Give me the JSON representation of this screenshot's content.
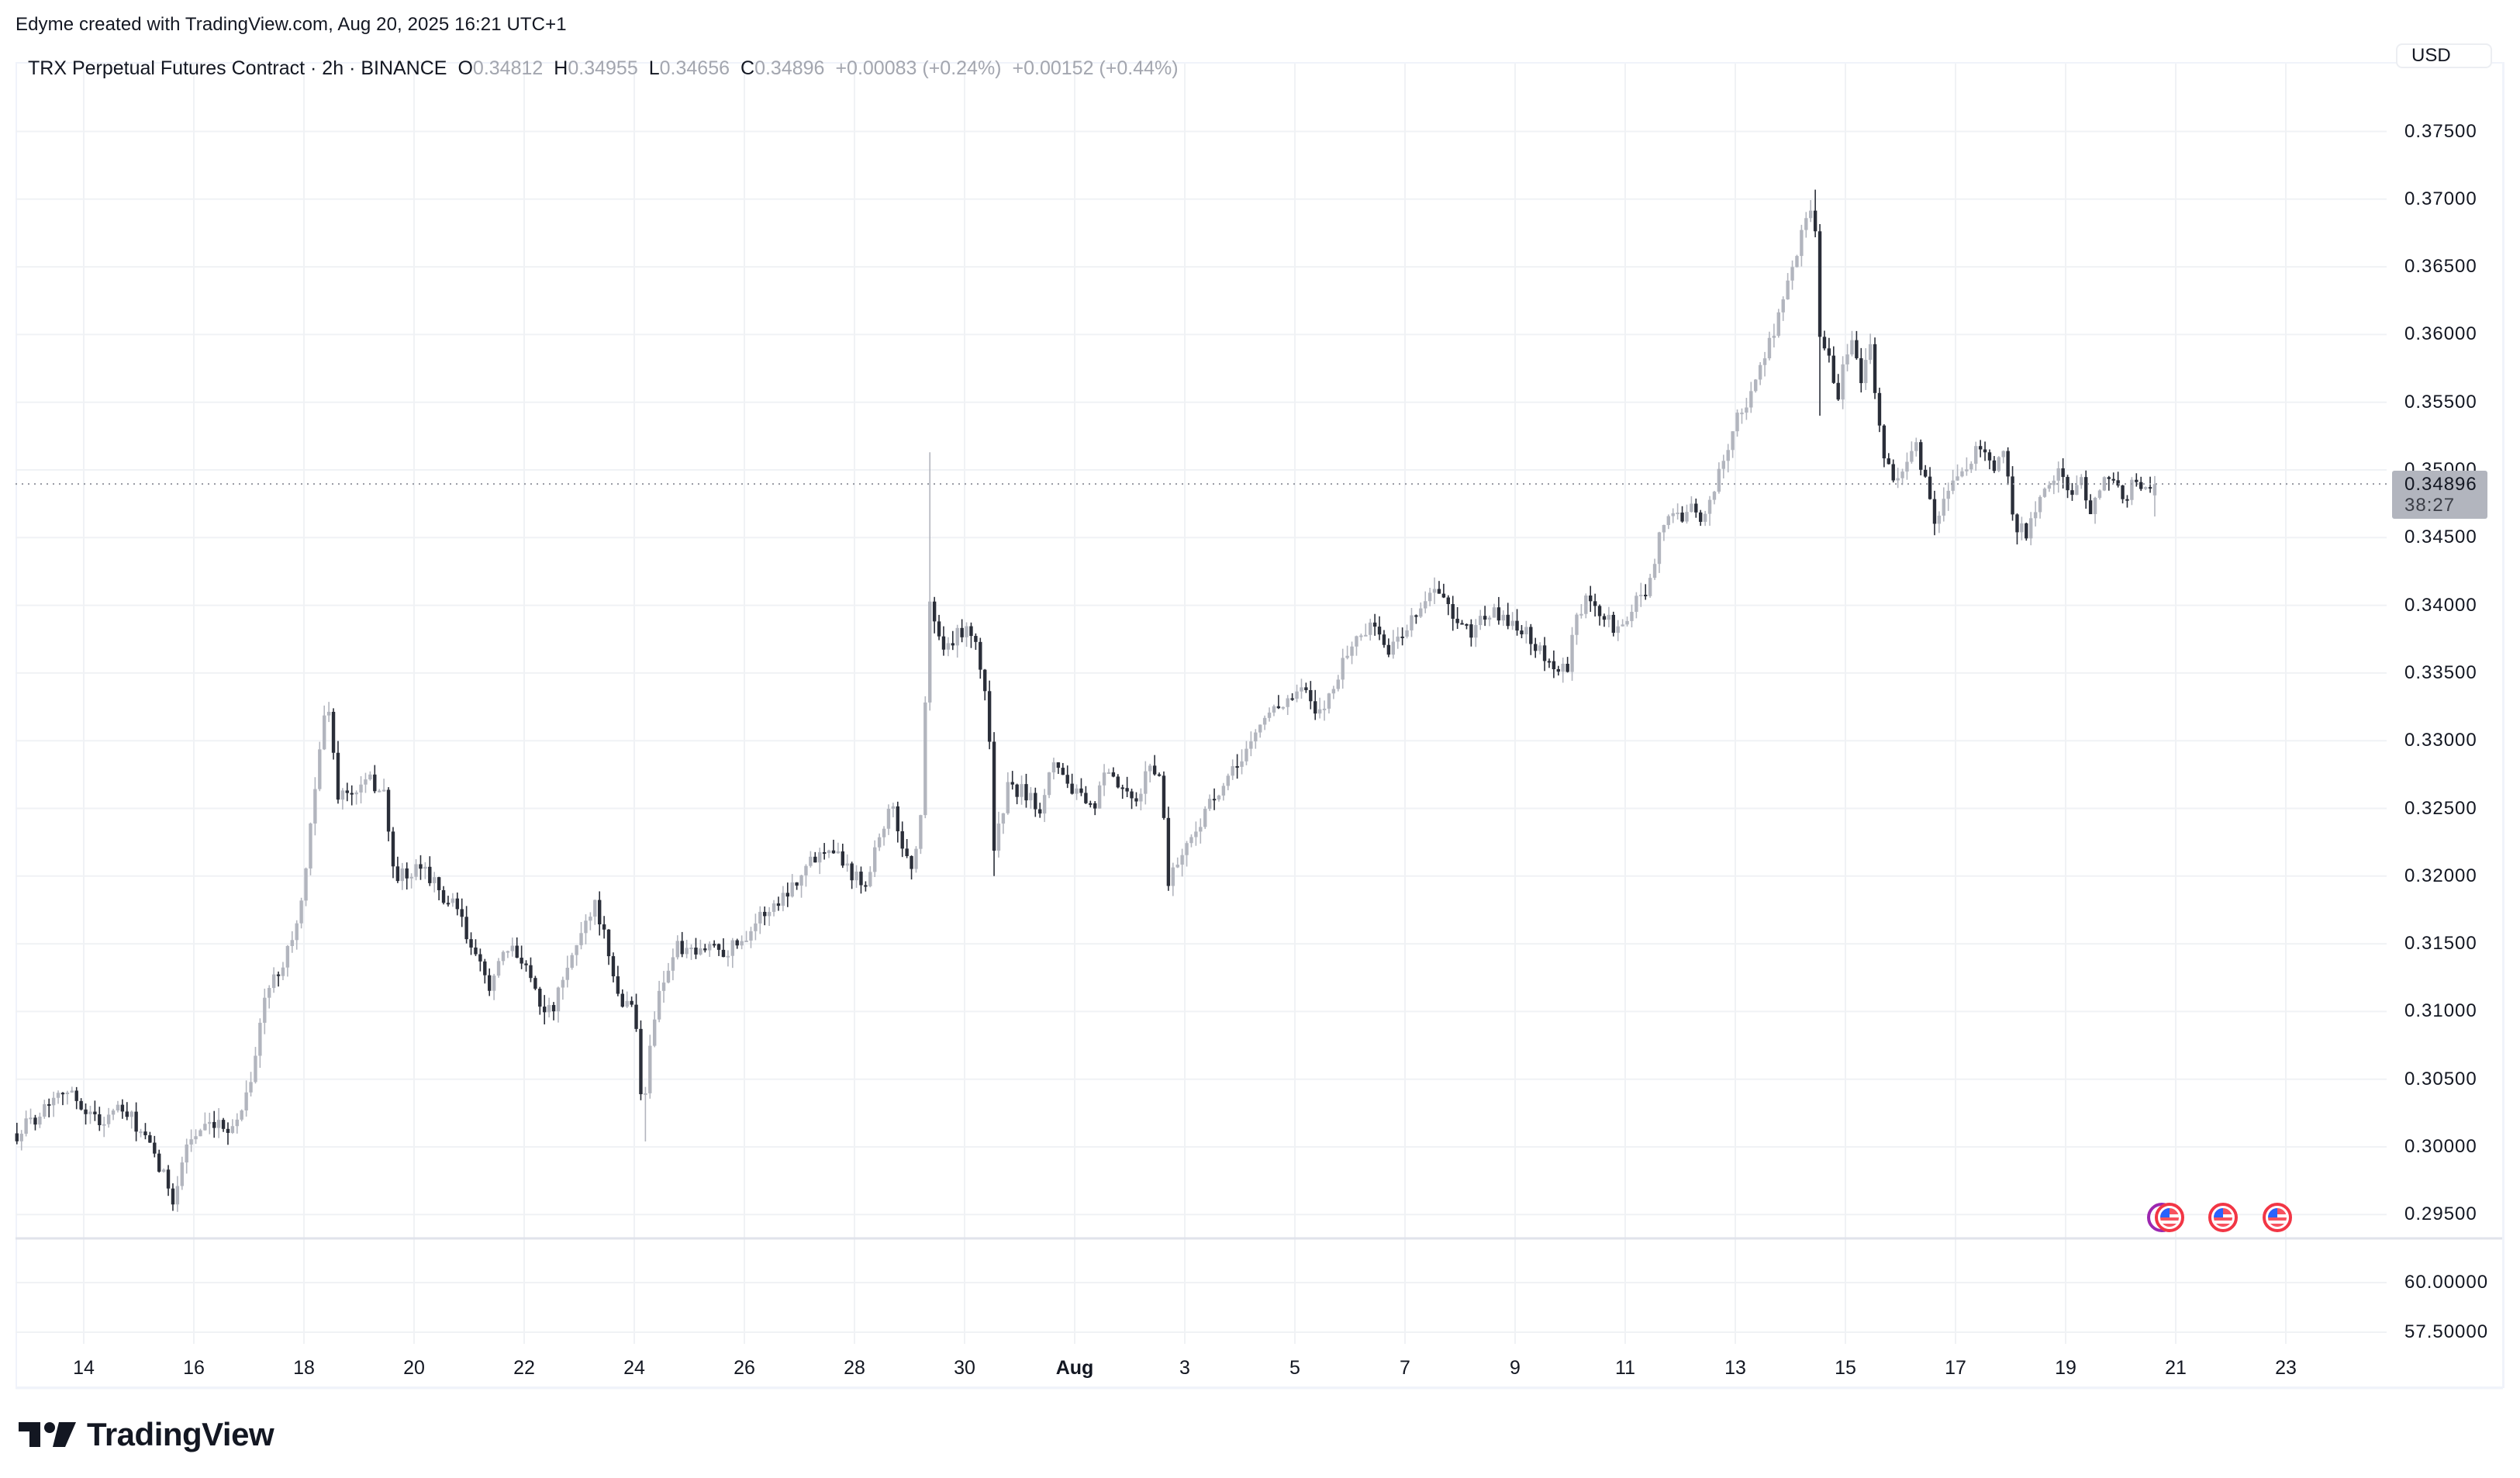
{
  "attribution": "Edyme created with TradingView.com, Aug 20, 2025 16:21 UTC+1",
  "legend": {
    "symbol": "TRX Perpetual Futures Contract · 2h · BINANCE",
    "o_label": "O",
    "o_value": "0.34812",
    "h_label": "H",
    "h_value": "0.34955",
    "l_label": "L",
    "l_value": "0.34656",
    "c_label": "C",
    "c_value": "0.34896",
    "change_1": "+0.00083 (+0.24%)",
    "change_2": "+0.00152 (+0.44%)"
  },
  "currency_button": "USD",
  "price_axis": {
    "labels": [
      "0.37500",
      "0.37000",
      "0.36500",
      "0.36000",
      "0.35500",
      "0.35000",
      "0.34500",
      "0.34000",
      "0.33500",
      "0.33000",
      "0.32500",
      "0.32000",
      "0.31500",
      "0.31000",
      "0.30500",
      "0.30000",
      "0.29500"
    ],
    "last_price": "0.34896",
    "countdown": "38:27"
  },
  "indicator_axis": {
    "labels": [
      "60.00000",
      "57.50000"
    ]
  },
  "time_axis": {
    "labels": [
      "14",
      "16",
      "18",
      "20",
      "22",
      "24",
      "26",
      "28",
      "30",
      "Aug",
      "3",
      "5",
      "7",
      "9",
      "11",
      "13",
      "15",
      "17",
      "19",
      "21",
      "23"
    ]
  },
  "event_markers": [
    {
      "type": "US economic event",
      "icon": "us-flag-icon"
    },
    {
      "type": "US economic event",
      "icon": "us-flag-icon"
    },
    {
      "type": "US economic event",
      "icon": "us-flag-icon"
    }
  ],
  "brand": {
    "logo_text": "TradingView"
  },
  "colors": {
    "up_candle": "#b2b5be",
    "down_candle": "#2a2e39",
    "grid": "#f0f2f5",
    "last_price_line": "#9598a1",
    "event_ring": "#f23645",
    "event_ring_alt": "#9c27b0"
  },
  "chart_data": {
    "type": "candlestick",
    "title": "TRX Perpetual Futures Contract · 2h · BINANCE",
    "interval": "2h",
    "xlabel": "",
    "ylabel": "USD",
    "ylim": [
      0.2915,
      0.3785
    ],
    "x_range": [
      "Jul 12 2025 ~18:00",
      "Aug 20 2025 16:00"
    ],
    "grid": true,
    "last": {
      "open": 0.34812,
      "high": 0.34955,
      "low": 0.34656,
      "close": 0.34896
    },
    "close_path_note": "approximate closes, day 0 = Jul 13 00:00",
    "close_path": [
      [
        -0.2,
        0.301
      ],
      [
        0.2,
        0.3025
      ],
      [
        0.6,
        0.3045
      ],
      [
        1.0,
        0.303
      ],
      [
        1.3,
        0.3018
      ],
      [
        1.6,
        0.3028
      ],
      [
        1.9,
        0.302
      ],
      [
        2.2,
        0.3
      ],
      [
        2.5,
        0.2975
      ],
      [
        2.65,
        0.2962
      ],
      [
        2.9,
        0.3005
      ],
      [
        3.2,
        0.3012
      ],
      [
        3.6,
        0.3015
      ],
      [
        3.8,
        0.3018
      ],
      [
        4.1,
        0.306
      ],
      [
        4.3,
        0.311
      ],
      [
        4.6,
        0.3135
      ],
      [
        4.9,
        0.3165
      ],
      [
        5.05,
        0.32
      ],
      [
        5.2,
        0.3265
      ],
      [
        5.35,
        0.331
      ],
      [
        5.5,
        0.333
      ],
      [
        5.58,
        0.3262
      ],
      [
        5.9,
        0.326
      ],
      [
        6.2,
        0.327
      ],
      [
        6.5,
        0.3262
      ],
      [
        6.6,
        0.3204
      ],
      [
        6.9,
        0.3198
      ],
      [
        7.2,
        0.3208
      ],
      [
        7.5,
        0.3185
      ],
      [
        7.8,
        0.3175
      ],
      [
        8.1,
        0.314
      ],
      [
        8.4,
        0.312
      ],
      [
        8.7,
        0.3145
      ],
      [
        9.0,
        0.314
      ],
      [
        9.3,
        0.3108
      ],
      [
        9.5,
        0.3098
      ],
      [
        9.8,
        0.313
      ],
      [
        10.1,
        0.3165
      ],
      [
        10.3,
        0.318
      ],
      [
        10.45,
        0.316
      ],
      [
        10.6,
        0.3125
      ],
      [
        10.8,
        0.3105
      ],
      [
        11.0,
        0.311
      ],
      [
        11.18,
        0.3017
      ],
      [
        11.3,
        0.308
      ],
      [
        11.5,
        0.312
      ],
      [
        11.8,
        0.3148
      ],
      [
        12.1,
        0.314
      ],
      [
        12.4,
        0.315
      ],
      [
        12.7,
        0.3145
      ],
      [
        13.0,
        0.3155
      ],
      [
        13.3,
        0.317
      ],
      [
        13.6,
        0.318
      ],
      [
        14.0,
        0.32
      ],
      [
        14.3,
        0.3215
      ],
      [
        14.6,
        0.3225
      ],
      [
        14.9,
        0.3205
      ],
      [
        15.2,
        0.3195
      ],
      [
        15.5,
        0.3235
      ],
      [
        15.7,
        0.325
      ],
      [
        15.9,
        0.322
      ],
      [
        16.1,
        0.3205
      ],
      [
        16.25,
        0.3255
      ],
      [
        16.35,
        0.341
      ],
      [
        16.5,
        0.338
      ],
      [
        16.7,
        0.3365
      ],
      [
        16.9,
        0.338
      ],
      [
        17.1,
        0.3385
      ],
      [
        17.3,
        0.3355
      ],
      [
        17.45,
        0.332
      ],
      [
        17.55,
        0.322
      ],
      [
        17.8,
        0.3265
      ],
      [
        18.1,
        0.3262
      ],
      [
        18.4,
        0.325
      ],
      [
        18.6,
        0.329
      ],
      [
        18.8,
        0.3275
      ],
      [
        19.0,
        0.3262
      ],
      [
        19.3,
        0.3248
      ],
      [
        19.6,
        0.3275
      ],
      [
        19.9,
        0.3262
      ],
      [
        20.1,
        0.325
      ],
      [
        20.4,
        0.3285
      ],
      [
        20.6,
        0.3268
      ],
      [
        20.7,
        0.3195
      ],
      [
        20.85,
        0.321
      ],
      [
        21.1,
        0.3225
      ],
      [
        21.4,
        0.325
      ],
      [
        21.7,
        0.3262
      ],
      [
        22.0,
        0.3285
      ],
      [
        22.3,
        0.3305
      ],
      [
        22.6,
        0.3325
      ],
      [
        22.9,
        0.333
      ],
      [
        23.2,
        0.3338
      ],
      [
        23.4,
        0.3315
      ],
      [
        23.6,
        0.333
      ],
      [
        23.9,
        0.336
      ],
      [
        24.2,
        0.338
      ],
      [
        24.5,
        0.3385
      ],
      [
        24.7,
        0.3365
      ],
      [
        24.9,
        0.3375
      ],
      [
        25.2,
        0.3395
      ],
      [
        25.5,
        0.341
      ],
      [
        25.75,
        0.3405
      ],
      [
        25.9,
        0.3385
      ],
      [
        26.2,
        0.338
      ],
      [
        26.5,
        0.3395
      ],
      [
        26.8,
        0.339
      ],
      [
        27.1,
        0.3385
      ],
      [
        27.4,
        0.337
      ],
      [
        27.6,
        0.336
      ],
      [
        27.8,
        0.3352
      ],
      [
        27.95,
        0.335
      ],
      [
        28.1,
        0.3385
      ],
      [
        28.3,
        0.3405
      ],
      [
        28.5,
        0.3395
      ],
      [
        28.8,
        0.3385
      ],
      [
        29.0,
        0.338
      ],
      [
        29.2,
        0.3405
      ],
      [
        29.4,
        0.341
      ],
      [
        29.6,
        0.3445
      ],
      [
        29.8,
        0.347
      ],
      [
        30.0,
        0.3462
      ],
      [
        30.2,
        0.348
      ],
      [
        30.4,
        0.3455
      ],
      [
        30.6,
        0.348
      ],
      [
        30.8,
        0.351
      ],
      [
        31.0,
        0.3535
      ],
      [
        31.2,
        0.3545
      ],
      [
        31.4,
        0.357
      ],
      [
        31.6,
        0.359
      ],
      [
        31.8,
        0.3615
      ],
      [
        32.0,
        0.364
      ],
      [
        32.2,
        0.367
      ],
      [
        32.35,
        0.37
      ],
      [
        32.45,
        0.369
      ],
      [
        32.55,
        0.36
      ],
      [
        32.7,
        0.359
      ],
      [
        32.85,
        0.3545
      ],
      [
        33.0,
        0.358
      ],
      [
        33.15,
        0.36
      ],
      [
        33.3,
        0.357
      ],
      [
        33.45,
        0.36
      ],
      [
        33.55,
        0.356
      ],
      [
        33.7,
        0.351
      ],
      [
        33.9,
        0.349
      ],
      [
        34.1,
        0.3505
      ],
      [
        34.3,
        0.3515
      ],
      [
        34.5,
        0.349
      ],
      [
        34.6,
        0.346
      ],
      [
        34.8,
        0.3475
      ],
      [
        35.0,
        0.349
      ],
      [
        35.3,
        0.351
      ],
      [
        35.5,
        0.352
      ],
      [
        35.7,
        0.35
      ],
      [
        35.9,
        0.351
      ],
      [
        36.1,
        0.346
      ],
      [
        36.3,
        0.3455
      ],
      [
        36.5,
        0.347
      ],
      [
        36.7,
        0.349
      ],
      [
        36.9,
        0.3505
      ],
      [
        37.1,
        0.3478
      ],
      [
        37.3,
        0.349
      ],
      [
        37.5,
        0.347
      ],
      [
        37.7,
        0.349
      ],
      [
        37.9,
        0.3492
      ],
      [
        38.1,
        0.348
      ],
      [
        38.3,
        0.3495
      ],
      [
        38.5,
        0.3481
      ],
      [
        38.67,
        0.34896
      ]
    ],
    "notable_wicks": [
      {
        "day": 16.4,
        "high": 0.3513,
        "note": "Jul 29 spike"
      },
      {
        "day": 17.55,
        "low": 0.32,
        "note": "Jul 30 drop"
      },
      {
        "day": 32.45,
        "high": 0.3707,
        "note": "Aug 14 peak"
      },
      {
        "day": 32.55,
        "low": 0.354,
        "note": "Aug 14 wick"
      },
      {
        "day": 11.18,
        "low": 0.3004,
        "note": "Jul 24 low"
      },
      {
        "day": 2.7,
        "low": 0.2952,
        "note": "Jul 15 low"
      }
    ]
  }
}
